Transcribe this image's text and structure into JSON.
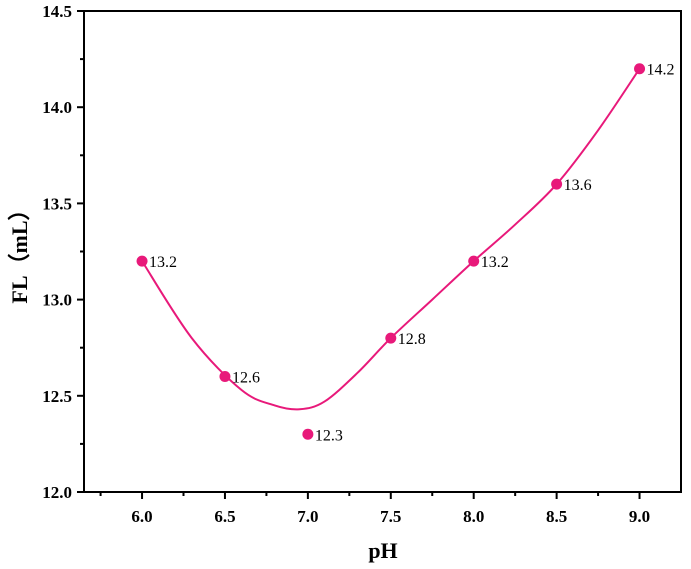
{
  "chart_data": {
    "type": "line",
    "xlabel": "pH",
    "ylabel": "FL（mL）",
    "xlim": [
      5.65,
      9.25
    ],
    "ylim": [
      12.0,
      14.5
    ],
    "xticks": [
      "6.0",
      "6.5",
      "7.0",
      "7.5",
      "8.0",
      "8.5",
      "9.0"
    ],
    "yticks": [
      "12.0",
      "12.5",
      "13.0",
      "13.5",
      "14.0",
      "14.5"
    ],
    "grid": false,
    "legend": "none",
    "line_color": "#e8197a",
    "marker_color": "#e8197a",
    "series": [
      {
        "x": [
          6.0,
          6.5,
          7.0,
          7.5,
          8.0,
          8.5,
          9.0
        ],
        "y": [
          13.2,
          12.6,
          12.3,
          12.8,
          13.2,
          13.6,
          14.2
        ],
        "data_labels": [
          "13.2",
          "12.6",
          "12.3",
          "12.8",
          "13.2",
          "13.6",
          "14.2"
        ],
        "curve_x": [
          6.0,
          6.3,
          6.6,
          6.8,
          6.95,
          7.1,
          7.3,
          7.5,
          7.75,
          8.0,
          8.25,
          8.5,
          8.75,
          9.0
        ],
        "curve_y": [
          13.2,
          12.8,
          12.53,
          12.45,
          12.43,
          12.47,
          12.62,
          12.8,
          13.0,
          13.2,
          13.39,
          13.6,
          13.88,
          14.2
        ]
      }
    ]
  }
}
